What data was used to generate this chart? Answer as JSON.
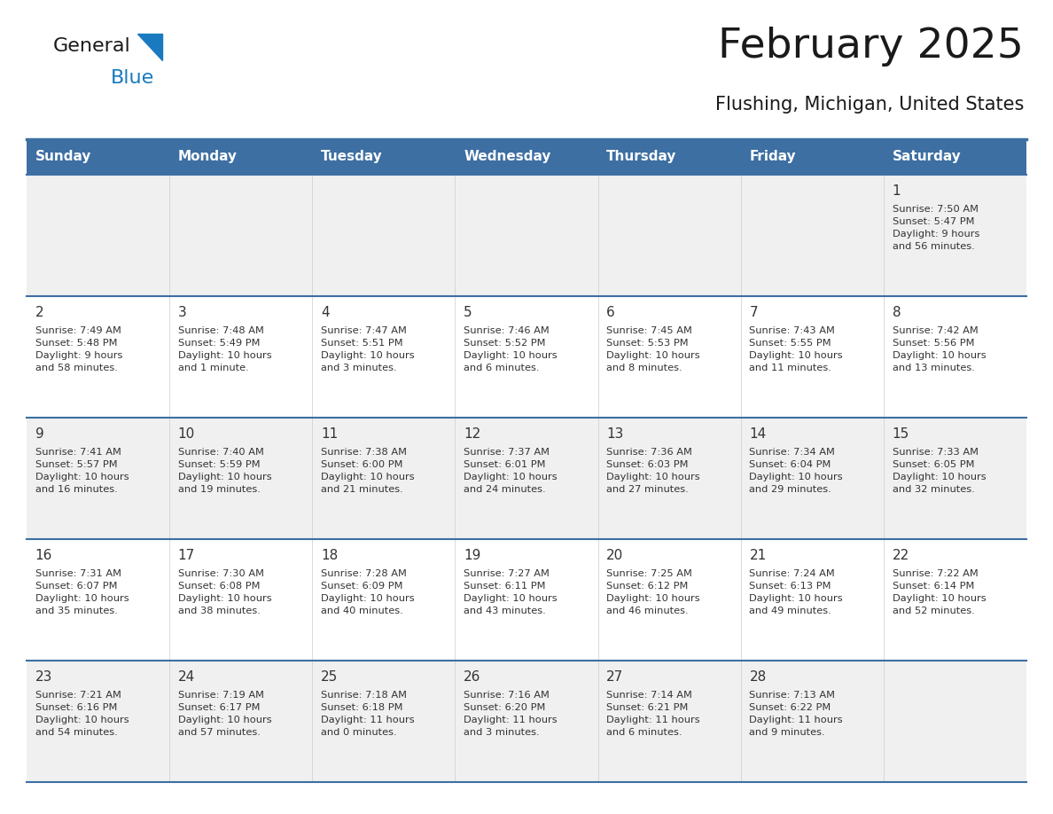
{
  "title": "February 2025",
  "subtitle": "Flushing, Michigan, United States",
  "header_bg_color": "#3d6fa3",
  "header_text_color": "#ffffff",
  "cell_bg_color_odd": "#f0f0f0",
  "cell_bg_color_even": "#ffffff",
  "day_number_color": "#333333",
  "info_text_color": "#333333",
  "grid_line_color": "#3d6fa3",
  "days_of_week": [
    "Sunday",
    "Monday",
    "Tuesday",
    "Wednesday",
    "Thursday",
    "Friday",
    "Saturday"
  ],
  "calendar": [
    [
      {
        "day": null,
        "info": null
      },
      {
        "day": null,
        "info": null
      },
      {
        "day": null,
        "info": null
      },
      {
        "day": null,
        "info": null
      },
      {
        "day": null,
        "info": null
      },
      {
        "day": null,
        "info": null
      },
      {
        "day": 1,
        "info": "Sunrise: 7:50 AM\nSunset: 5:47 PM\nDaylight: 9 hours\nand 56 minutes."
      }
    ],
    [
      {
        "day": 2,
        "info": "Sunrise: 7:49 AM\nSunset: 5:48 PM\nDaylight: 9 hours\nand 58 minutes."
      },
      {
        "day": 3,
        "info": "Sunrise: 7:48 AM\nSunset: 5:49 PM\nDaylight: 10 hours\nand 1 minute."
      },
      {
        "day": 4,
        "info": "Sunrise: 7:47 AM\nSunset: 5:51 PM\nDaylight: 10 hours\nand 3 minutes."
      },
      {
        "day": 5,
        "info": "Sunrise: 7:46 AM\nSunset: 5:52 PM\nDaylight: 10 hours\nand 6 minutes."
      },
      {
        "day": 6,
        "info": "Sunrise: 7:45 AM\nSunset: 5:53 PM\nDaylight: 10 hours\nand 8 minutes."
      },
      {
        "day": 7,
        "info": "Sunrise: 7:43 AM\nSunset: 5:55 PM\nDaylight: 10 hours\nand 11 minutes."
      },
      {
        "day": 8,
        "info": "Sunrise: 7:42 AM\nSunset: 5:56 PM\nDaylight: 10 hours\nand 13 minutes."
      }
    ],
    [
      {
        "day": 9,
        "info": "Sunrise: 7:41 AM\nSunset: 5:57 PM\nDaylight: 10 hours\nand 16 minutes."
      },
      {
        "day": 10,
        "info": "Sunrise: 7:40 AM\nSunset: 5:59 PM\nDaylight: 10 hours\nand 19 minutes."
      },
      {
        "day": 11,
        "info": "Sunrise: 7:38 AM\nSunset: 6:00 PM\nDaylight: 10 hours\nand 21 minutes."
      },
      {
        "day": 12,
        "info": "Sunrise: 7:37 AM\nSunset: 6:01 PM\nDaylight: 10 hours\nand 24 minutes."
      },
      {
        "day": 13,
        "info": "Sunrise: 7:36 AM\nSunset: 6:03 PM\nDaylight: 10 hours\nand 27 minutes."
      },
      {
        "day": 14,
        "info": "Sunrise: 7:34 AM\nSunset: 6:04 PM\nDaylight: 10 hours\nand 29 minutes."
      },
      {
        "day": 15,
        "info": "Sunrise: 7:33 AM\nSunset: 6:05 PM\nDaylight: 10 hours\nand 32 minutes."
      }
    ],
    [
      {
        "day": 16,
        "info": "Sunrise: 7:31 AM\nSunset: 6:07 PM\nDaylight: 10 hours\nand 35 minutes."
      },
      {
        "day": 17,
        "info": "Sunrise: 7:30 AM\nSunset: 6:08 PM\nDaylight: 10 hours\nand 38 minutes."
      },
      {
        "day": 18,
        "info": "Sunrise: 7:28 AM\nSunset: 6:09 PM\nDaylight: 10 hours\nand 40 minutes."
      },
      {
        "day": 19,
        "info": "Sunrise: 7:27 AM\nSunset: 6:11 PM\nDaylight: 10 hours\nand 43 minutes."
      },
      {
        "day": 20,
        "info": "Sunrise: 7:25 AM\nSunset: 6:12 PM\nDaylight: 10 hours\nand 46 minutes."
      },
      {
        "day": 21,
        "info": "Sunrise: 7:24 AM\nSunset: 6:13 PM\nDaylight: 10 hours\nand 49 minutes."
      },
      {
        "day": 22,
        "info": "Sunrise: 7:22 AM\nSunset: 6:14 PM\nDaylight: 10 hours\nand 52 minutes."
      }
    ],
    [
      {
        "day": 23,
        "info": "Sunrise: 7:21 AM\nSunset: 6:16 PM\nDaylight: 10 hours\nand 54 minutes."
      },
      {
        "day": 24,
        "info": "Sunrise: 7:19 AM\nSunset: 6:17 PM\nDaylight: 10 hours\nand 57 minutes."
      },
      {
        "day": 25,
        "info": "Sunrise: 7:18 AM\nSunset: 6:18 PM\nDaylight: 11 hours\nand 0 minutes."
      },
      {
        "day": 26,
        "info": "Sunrise: 7:16 AM\nSunset: 6:20 PM\nDaylight: 11 hours\nand 3 minutes."
      },
      {
        "day": 27,
        "info": "Sunrise: 7:14 AM\nSunset: 6:21 PM\nDaylight: 11 hours\nand 6 minutes."
      },
      {
        "day": 28,
        "info": "Sunrise: 7:13 AM\nSunset: 6:22 PM\nDaylight: 11 hours\nand 9 minutes."
      },
      {
        "day": null,
        "info": null
      }
    ]
  ],
  "logo_text_general": "General",
  "logo_text_blue": "Blue",
  "logo_color_general": "#1a1a1a",
  "logo_color_blue": "#1a7abf",
  "logo_triangle_color": "#1a7abf",
  "fig_width": 11.88,
  "fig_height": 9.18,
  "dpi": 100
}
